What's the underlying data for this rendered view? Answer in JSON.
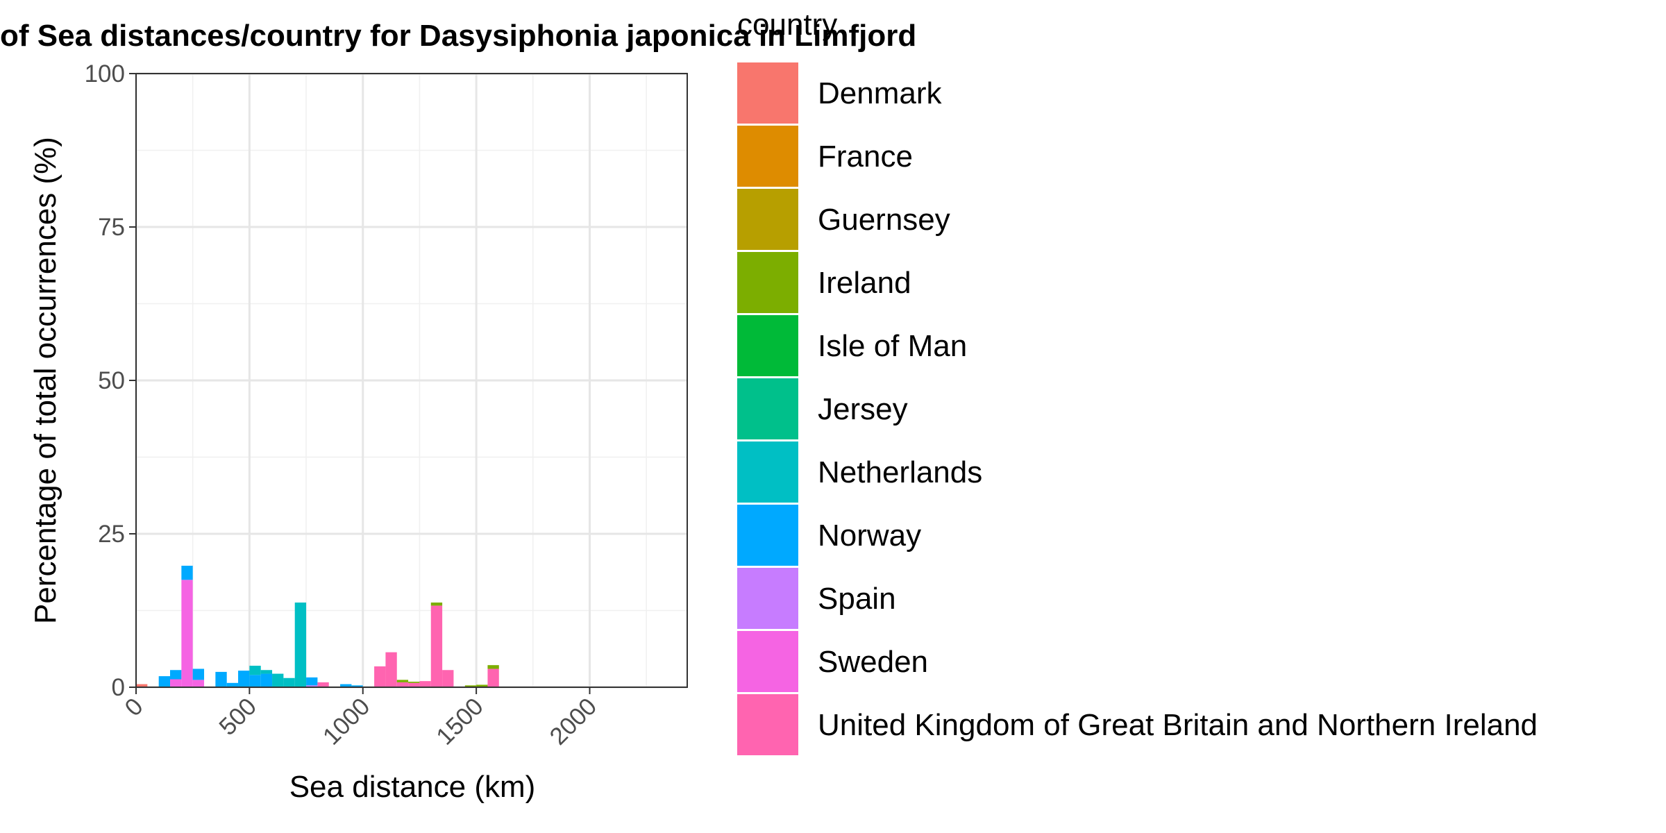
{
  "chart_data": {
    "type": "bar",
    "stacked": true,
    "title": "of Sea distances/country for Dasysiphonia japonica in Limfjord",
    "xlabel": "Sea distance (km)",
    "ylabel": "Percentage of total occurrences (%)",
    "xlim": [
      0,
      2430
    ],
    "ylim": [
      0,
      100
    ],
    "xticks": [
      "0",
      "500",
      "1000",
      "1500",
      "2000"
    ],
    "yticks": [
      "0",
      "25",
      "50",
      "75",
      "100"
    ],
    "grid": true,
    "legend": {
      "title": "country",
      "placement": "right",
      "entries": [
        {
          "name": "Denmark",
          "color": "#F8766D"
        },
        {
          "name": "France",
          "color": "#DE8C00"
        },
        {
          "name": "Guernsey",
          "color": "#B79F00"
        },
        {
          "name": "Ireland",
          "color": "#7CAE00"
        },
        {
          "name": "Isle of Man",
          "color": "#00BA38"
        },
        {
          "name": "Jersey",
          "color": "#00C08B"
        },
        {
          "name": "Netherlands",
          "color": "#00BFC4"
        },
        {
          "name": "Norway",
          "color": "#00A9FF"
        },
        {
          "name": "Spain",
          "color": "#C77CFF"
        },
        {
          "name": "Sweden",
          "color": "#F564E3"
        },
        {
          "name": "United Kingdom of Great Britain and Northern Ireland",
          "color": "#FF64B0"
        }
      ]
    },
    "bin_width": 50,
    "bins": [
      {
        "x0": 0,
        "segments": [
          {
            "country": "Denmark",
            "value": 0.5
          }
        ]
      },
      {
        "x0": 100,
        "segments": [
          {
            "country": "Norway",
            "value": 1.8
          }
        ]
      },
      {
        "x0": 150,
        "segments": [
          {
            "country": "Sweden",
            "value": 1.3
          },
          {
            "country": "Norway",
            "value": 1.5
          }
        ]
      },
      {
        "x0": 200,
        "segments": [
          {
            "country": "Sweden",
            "value": 17.5
          },
          {
            "country": "Norway",
            "value": 2.3
          }
        ]
      },
      {
        "x0": 250,
        "segments": [
          {
            "country": "Sweden",
            "value": 1.2
          },
          {
            "country": "Norway",
            "value": 1.8
          }
        ]
      },
      {
        "x0": 350,
        "segments": [
          {
            "country": "Norway",
            "value": 2.5
          }
        ]
      },
      {
        "x0": 400,
        "segments": [
          {
            "country": "Norway",
            "value": 0.7
          }
        ]
      },
      {
        "x0": 450,
        "segments": [
          {
            "country": "Norway",
            "value": 2.7
          }
        ]
      },
      {
        "x0": 500,
        "segments": [
          {
            "country": "Norway",
            "value": 2.0
          },
          {
            "country": "Netherlands",
            "value": 1.5
          }
        ]
      },
      {
        "x0": 550,
        "segments": [
          {
            "country": "Norway",
            "value": 2.2
          },
          {
            "country": "Netherlands",
            "value": 0.6
          }
        ]
      },
      {
        "x0": 600,
        "segments": [
          {
            "country": "Netherlands",
            "value": 2.2
          }
        ]
      },
      {
        "x0": 650,
        "segments": [
          {
            "country": "Netherlands",
            "value": 1.5
          }
        ]
      },
      {
        "x0": 700,
        "segments": [
          {
            "country": "Netherlands",
            "value": 13.8
          }
        ]
      },
      {
        "x0": 750,
        "segments": [
          {
            "country": "Spain",
            "value": 0.3
          },
          {
            "country": "Norway",
            "value": 1.3
          }
        ]
      },
      {
        "x0": 800,
        "segments": [
          {
            "country": "United Kingdom of Great Britain and Northern Ireland",
            "value": 0.8
          }
        ]
      },
      {
        "x0": 900,
        "segments": [
          {
            "country": "Norway",
            "value": 0.5
          }
        ]
      },
      {
        "x0": 950,
        "segments": [
          {
            "country": "Norway",
            "value": 0.3
          }
        ]
      },
      {
        "x0": 1050,
        "segments": [
          {
            "country": "United Kingdom of Great Britain and Northern Ireland",
            "value": 3.4
          }
        ]
      },
      {
        "x0": 1100,
        "segments": [
          {
            "country": "United Kingdom of Great Britain and Northern Ireland",
            "value": 5.7
          }
        ]
      },
      {
        "x0": 1150,
        "segments": [
          {
            "country": "United Kingdom of Great Britain and Northern Ireland",
            "value": 0.8
          },
          {
            "country": "Ireland",
            "value": 0.4
          }
        ]
      },
      {
        "x0": 1200,
        "segments": [
          {
            "country": "United Kingdom of Great Britain and Northern Ireland",
            "value": 0.7
          },
          {
            "country": "Ireland",
            "value": 0.2
          }
        ]
      },
      {
        "x0": 1250,
        "segments": [
          {
            "country": "United Kingdom of Great Britain and Northern Ireland",
            "value": 1.0
          }
        ]
      },
      {
        "x0": 1300,
        "segments": [
          {
            "country": "United Kingdom of Great Britain and Northern Ireland",
            "value": 13.3
          },
          {
            "country": "Ireland",
            "value": 0.5
          }
        ]
      },
      {
        "x0": 1350,
        "segments": [
          {
            "country": "United Kingdom of Great Britain and Northern Ireland",
            "value": 2.8
          }
        ]
      },
      {
        "x0": 1450,
        "segments": [
          {
            "country": "Ireland",
            "value": 0.3
          }
        ]
      },
      {
        "x0": 1500,
        "segments": [
          {
            "country": "Ireland",
            "value": 0.4
          }
        ]
      },
      {
        "x0": 1550,
        "segments": [
          {
            "country": "United Kingdom of Great Britain and Northern Ireland",
            "value": 3.0
          },
          {
            "country": "Ireland",
            "value": 0.6
          }
        ]
      }
    ]
  }
}
